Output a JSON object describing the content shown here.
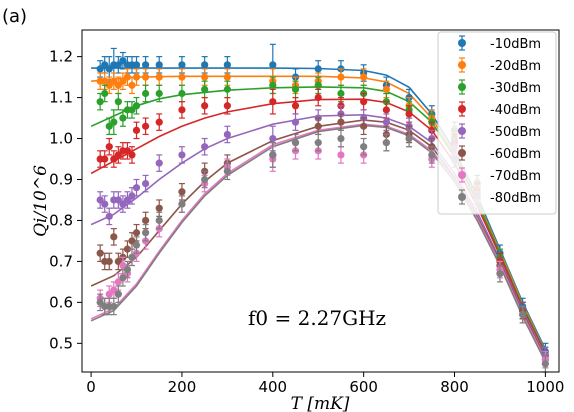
{
  "panel_label": "(a)",
  "annotation": "f0 = 2.27GHz",
  "chart_data": {
    "type": "scatter",
    "xlabel": "T [mK]",
    "ylabel": "Qi/10^6",
    "xlim": [
      -20,
      1030
    ],
    "ylim": [
      0.43,
      1.265
    ],
    "xticks": [
      0,
      200,
      400,
      600,
      800,
      1000
    ],
    "yticks": [
      0.5,
      0.6,
      0.7,
      0.8,
      0.9,
      1.0,
      1.1,
      1.2
    ],
    "grid": false,
    "legend_position": "top-right",
    "x": [
      20,
      30,
      40,
      50,
      60,
      70,
      80,
      90,
      100,
      120,
      150,
      200,
      250,
      300,
      400,
      450,
      500,
      550,
      600,
      650,
      700,
      750,
      800,
      850,
      900,
      950,
      1000
    ],
    "series": [
      {
        "name": "-10dBm",
        "color": "#1f77b4",
        "values": [
          1.17,
          1.18,
          1.17,
          1.18,
          1.18,
          1.19,
          1.18,
          1.18,
          1.18,
          1.18,
          1.18,
          1.18,
          1.18,
          1.18,
          1.18,
          1.15,
          1.17,
          1.17,
          1.16,
          1.13,
          1.1,
          1.06,
          1.02,
          0.89,
          0.72,
          0.59,
          0.48
        ],
        "errors": [
          0.02,
          0.02,
          0.03,
          0.04,
          0.02,
          0.02,
          0.02,
          0.02,
          0.02,
          0.02,
          0.02,
          0.02,
          0.02,
          0.02,
          0.05,
          0.02,
          0.02,
          0.02,
          0.02,
          0.02,
          0.02,
          0.02,
          0.02,
          0.02,
          0.02,
          0.02,
          0.02
        ],
        "fit": [
          [
            0,
            1.172
          ],
          [
            100,
            1.172
          ],
          [
            200,
            1.172
          ],
          [
            300,
            1.172
          ],
          [
            400,
            1.172
          ],
          [
            500,
            1.171
          ],
          [
            600,
            1.166
          ],
          [
            650,
            1.155
          ],
          [
            700,
            1.125
          ],
          [
            750,
            1.06
          ],
          [
            800,
            0.97
          ],
          [
            850,
            0.86
          ],
          [
            900,
            0.73
          ],
          [
            950,
            0.6
          ],
          [
            1000,
            0.485
          ]
        ]
      },
      {
        "name": "-20dBm",
        "color": "#ff7f0e",
        "values": [
          1.14,
          1.14,
          1.13,
          1.14,
          1.13,
          1.14,
          1.15,
          1.13,
          1.15,
          1.15,
          1.15,
          1.15,
          1.15,
          1.15,
          1.14,
          1.13,
          1.14,
          1.15,
          1.15,
          1.12,
          1.08,
          1.05,
          1.01,
          0.88,
          0.71,
          0.58,
          0.47
        ],
        "errors": [
          0.02,
          0.02,
          0.02,
          0.02,
          0.02,
          0.02,
          0.02,
          0.02,
          0.02,
          0.02,
          0.02,
          0.02,
          0.02,
          0.02,
          0.03,
          0.02,
          0.02,
          0.02,
          0.02,
          0.02,
          0.02,
          0.02,
          0.02,
          0.02,
          0.02,
          0.02,
          0.02
        ],
        "fit": [
          [
            0,
            1.14
          ],
          [
            100,
            1.15
          ],
          [
            200,
            1.152
          ],
          [
            300,
            1.152
          ],
          [
            400,
            1.152
          ],
          [
            500,
            1.152
          ],
          [
            600,
            1.148
          ],
          [
            650,
            1.138
          ],
          [
            700,
            1.11
          ],
          [
            750,
            1.05
          ],
          [
            800,
            0.96
          ],
          [
            850,
            0.85
          ],
          [
            900,
            0.725
          ],
          [
            950,
            0.595
          ],
          [
            1000,
            0.48
          ]
        ]
      },
      {
        "name": "-30dBm",
        "color": "#2ca02c",
        "values": [
          1.09,
          1.11,
          1.03,
          1.04,
          1.09,
          1.05,
          1.07,
          1.07,
          1.08,
          1.11,
          1.11,
          1.11,
          1.12,
          1.12,
          1.13,
          1.12,
          1.13,
          1.11,
          1.11,
          1.09,
          1.07,
          1.04,
          1.0,
          0.87,
          0.71,
          0.58,
          0.47
        ],
        "errors": [
          0.02,
          0.02,
          0.02,
          0.03,
          0.02,
          0.02,
          0.02,
          0.02,
          0.02,
          0.02,
          0.02,
          0.02,
          0.02,
          0.02,
          0.02,
          0.02,
          0.02,
          0.02,
          0.02,
          0.02,
          0.02,
          0.02,
          0.02,
          0.02,
          0.02,
          0.02,
          0.02
        ],
        "fit": [
          [
            0,
            1.03
          ],
          [
            50,
            1.055
          ],
          [
            100,
            1.08
          ],
          [
            150,
            1.097
          ],
          [
            200,
            1.107
          ],
          [
            300,
            1.118
          ],
          [
            400,
            1.124
          ],
          [
            500,
            1.126
          ],
          [
            600,
            1.124
          ],
          [
            650,
            1.115
          ],
          [
            700,
            1.09
          ],
          [
            750,
            1.04
          ],
          [
            800,
            0.955
          ],
          [
            850,
            0.845
          ],
          [
            900,
            0.72
          ],
          [
            950,
            0.59
          ],
          [
            1000,
            0.478
          ]
        ]
      },
      {
        "name": "-40dBm",
        "color": "#d62728",
        "values": [
          0.95,
          0.95,
          0.98,
          0.95,
          0.96,
          0.97,
          0.97,
          0.96,
          1.02,
          1.03,
          1.04,
          1.07,
          1.08,
          1.08,
          1.09,
          1.08,
          1.1,
          1.08,
          1.09,
          1.07,
          1.06,
          1.02,
          0.99,
          0.87,
          0.7,
          0.58,
          0.47
        ],
        "errors": [
          0.02,
          0.02,
          0.02,
          0.02,
          0.02,
          0.02,
          0.02,
          0.02,
          0.02,
          0.02,
          0.02,
          0.02,
          0.02,
          0.02,
          0.03,
          0.02,
          0.02,
          0.02,
          0.02,
          0.02,
          0.02,
          0.02,
          0.02,
          0.02,
          0.02,
          0.02,
          0.02
        ],
        "fit": [
          [
            0,
            0.915
          ],
          [
            50,
            0.945
          ],
          [
            100,
            0.975
          ],
          [
            150,
            1.005
          ],
          [
            200,
            1.03
          ],
          [
            250,
            1.05
          ],
          [
            300,
            1.065
          ],
          [
            400,
            1.085
          ],
          [
            500,
            1.095
          ],
          [
            600,
            1.096
          ],
          [
            650,
            1.088
          ],
          [
            700,
            1.065
          ],
          [
            750,
            1.02
          ],
          [
            800,
            0.94
          ],
          [
            850,
            0.835
          ],
          [
            900,
            0.715
          ],
          [
            950,
            0.585
          ],
          [
            1000,
            0.475
          ]
        ]
      },
      {
        "name": "-50dBm",
        "color": "#9467bd",
        "values": [
          0.85,
          0.84,
          0.81,
          0.85,
          0.85,
          0.84,
          0.85,
          0.86,
          0.88,
          0.89,
          0.94,
          0.96,
          0.98,
          1.01,
          1.0,
          1.04,
          1.05,
          1.06,
          1.05,
          1.04,
          1.03,
          1.0,
          0.98,
          0.86,
          0.69,
          0.58,
          0.47
        ],
        "errors": [
          0.02,
          0.02,
          0.02,
          0.02,
          0.02,
          0.02,
          0.02,
          0.02,
          0.02,
          0.02,
          0.02,
          0.02,
          0.02,
          0.02,
          0.03,
          0.02,
          0.02,
          0.02,
          0.02,
          0.02,
          0.02,
          0.02,
          0.02,
          0.02,
          0.02,
          0.02,
          0.02
        ],
        "fit": [
          [
            0,
            0.79
          ],
          [
            50,
            0.815
          ],
          [
            100,
            0.855
          ],
          [
            150,
            0.9
          ],
          [
            200,
            0.94
          ],
          [
            250,
            0.975
          ],
          [
            300,
            1.0
          ],
          [
            400,
            1.035
          ],
          [
            500,
            1.055
          ],
          [
            600,
            1.058
          ],
          [
            650,
            1.05
          ],
          [
            700,
            1.03
          ],
          [
            750,
            0.99
          ],
          [
            800,
            0.915
          ],
          [
            850,
            0.82
          ],
          [
            900,
            0.705
          ],
          [
            950,
            0.58
          ],
          [
            1000,
            0.47
          ]
        ]
      },
      {
        "name": "-60dBm",
        "color": "#8c564b",
        "values": [
          0.72,
          0.7,
          0.7,
          0.76,
          0.7,
          0.71,
          0.73,
          0.75,
          0.77,
          0.8,
          0.83,
          0.87,
          0.92,
          0.94,
          0.96,
          0.99,
          1.03,
          1.04,
          1.03,
          1.01,
          1.01,
          0.98,
          0.96,
          0.85,
          0.69,
          0.58,
          0.46
        ],
        "errors": [
          0.02,
          0.02,
          0.02,
          0.02,
          0.02,
          0.02,
          0.02,
          0.02,
          0.02,
          0.02,
          0.02,
          0.02,
          0.02,
          0.02,
          0.03,
          0.02,
          0.02,
          0.02,
          0.02,
          0.02,
          0.02,
          0.02,
          0.02,
          0.02,
          0.02,
          0.02,
          0.02
        ],
        "fit": [
          [
            0,
            0.64
          ],
          [
            50,
            0.665
          ],
          [
            100,
            0.71
          ],
          [
            150,
            0.775
          ],
          [
            200,
            0.84
          ],
          [
            250,
            0.895
          ],
          [
            300,
            0.94
          ],
          [
            400,
            0.995
          ],
          [
            500,
            1.03
          ],
          [
            600,
            1.045
          ],
          [
            650,
            1.04
          ],
          [
            700,
            1.02
          ],
          [
            750,
            0.98
          ],
          [
            800,
            0.905
          ],
          [
            850,
            0.81
          ],
          [
            900,
            0.7
          ],
          [
            950,
            0.575
          ],
          [
            1000,
            0.465
          ]
        ]
      },
      {
        "name": "-70dBm",
        "color": "#e377c2",
        "values": [
          0.61,
          0.59,
          0.62,
          0.63,
          0.65,
          0.69,
          0.67,
          0.71,
          0.72,
          0.75,
          0.78,
          0.84,
          0.89,
          0.93,
          0.95,
          0.97,
          0.97,
          0.96,
          0.96,
          0.99,
          1.0,
          0.95,
          0.96,
          0.85,
          0.68,
          0.57,
          0.46
        ],
        "errors": [
          0.02,
          0.02,
          0.02,
          0.02,
          0.02,
          0.02,
          0.02,
          0.02,
          0.02,
          0.02,
          0.02,
          0.02,
          0.02,
          0.02,
          0.03,
          0.02,
          0.02,
          0.02,
          0.02,
          0.02,
          0.02,
          0.02,
          0.02,
          0.02,
          0.02,
          0.02,
          0.02
        ],
        "fit": [
          [
            0,
            0.56
          ],
          [
            50,
            0.585
          ],
          [
            100,
            0.645
          ],
          [
            150,
            0.725
          ],
          [
            200,
            0.8
          ],
          [
            250,
            0.865
          ],
          [
            300,
            0.915
          ],
          [
            400,
            0.985
          ],
          [
            500,
            1.02
          ],
          [
            600,
            1.035
          ],
          [
            650,
            1.03
          ],
          [
            700,
            1.01
          ],
          [
            750,
            0.97
          ],
          [
            800,
            0.9
          ],
          [
            850,
            0.805
          ],
          [
            900,
            0.695
          ],
          [
            950,
            0.57
          ],
          [
            1000,
            0.46
          ]
        ]
      },
      {
        "name": "-80dBm",
        "color": "#7f7f7f",
        "values": [
          0.6,
          0.59,
          0.59,
          0.59,
          0.62,
          0.66,
          0.68,
          0.71,
          0.74,
          0.77,
          0.8,
          0.84,
          0.9,
          0.92,
          0.96,
          0.99,
          0.99,
          1.0,
          0.98,
          0.99,
          1.0,
          0.96,
          0.95,
          0.86,
          0.67,
          0.57,
          0.45
        ],
        "errors": [
          0.02,
          0.02,
          0.02,
          0.02,
          0.02,
          0.02,
          0.02,
          0.02,
          0.02,
          0.02,
          0.02,
          0.02,
          0.02,
          0.02,
          0.03,
          0.02,
          0.02,
          0.02,
          0.02,
          0.02,
          0.02,
          0.02,
          0.02,
          0.02,
          0.02,
          0.02,
          0.02
        ],
        "fit": [
          [
            0,
            0.555
          ],
          [
            50,
            0.58
          ],
          [
            100,
            0.64
          ],
          [
            150,
            0.72
          ],
          [
            200,
            0.795
          ],
          [
            250,
            0.86
          ],
          [
            300,
            0.91
          ],
          [
            400,
            0.98
          ],
          [
            500,
            1.017
          ],
          [
            600,
            1.032
          ],
          [
            650,
            1.027
          ],
          [
            700,
            1.007
          ],
          [
            750,
            0.965
          ],
          [
            800,
            0.895
          ],
          [
            850,
            0.8
          ],
          [
            900,
            0.69
          ],
          [
            950,
            0.565
          ],
          [
            1000,
            0.455
          ]
        ]
      }
    ]
  }
}
